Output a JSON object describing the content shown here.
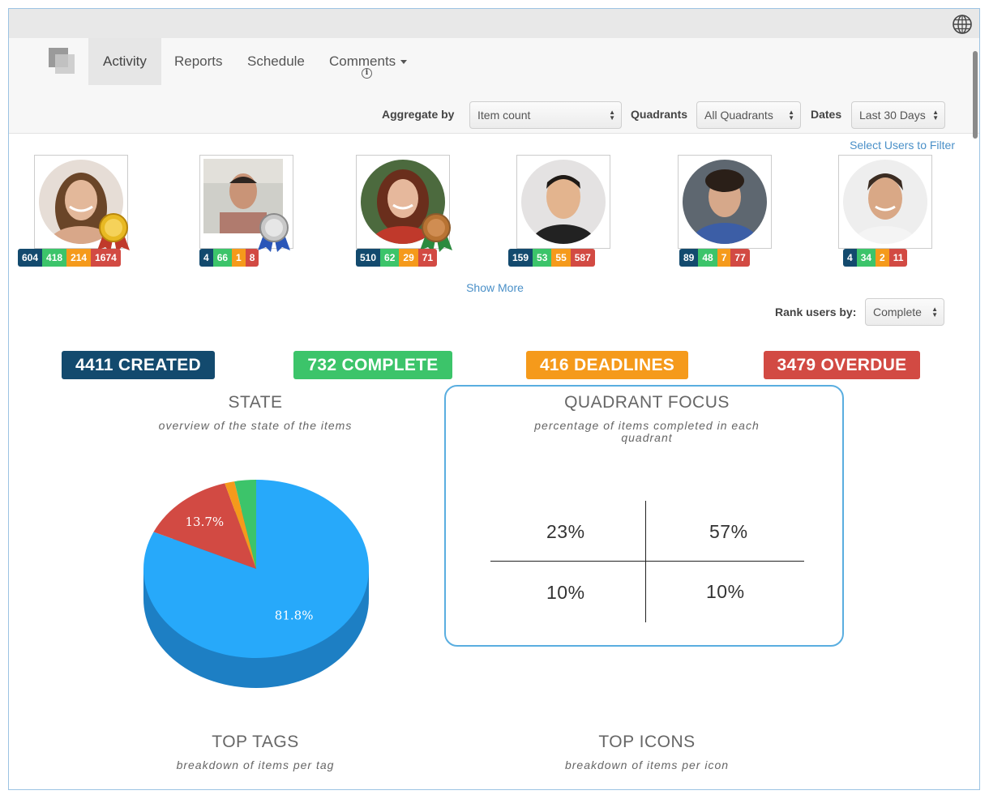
{
  "nav": {
    "tabs": [
      "Activity",
      "Reports",
      "Schedule",
      "Comments"
    ],
    "active_tab": "Activity"
  },
  "filters": {
    "aggregate_label": "Aggregate by",
    "aggregate_value": "Item count",
    "quadrants_label": "Quadrants",
    "quadrants_value": "All Quadrants",
    "dates_label": "Dates",
    "dates_value": "Last 30 Days"
  },
  "select_users_link": "Select Users to Filter",
  "users": [
    {
      "name": "",
      "medal": "gold",
      "stats": [
        "604",
        "418",
        "214",
        "1674"
      ]
    },
    {
      "name": "",
      "medal": "silver",
      "stats": [
        "4",
        "66",
        "1",
        "8"
      ]
    },
    {
      "name": "",
      "medal": "bronze",
      "stats": [
        "510",
        "62",
        "29",
        "71"
      ]
    },
    {
      "name": "",
      "medal": "",
      "stats": [
        "159",
        "53",
        "55",
        "587"
      ]
    },
    {
      "name": "",
      "medal": "",
      "stats": [
        "89",
        "48",
        "7",
        "77"
      ]
    },
    {
      "name": "",
      "medal": "",
      "stats": [
        "4",
        "34",
        "2",
        "11"
      ]
    }
  ],
  "show_more": "Show More",
  "rank": {
    "label": "Rank users by:",
    "value": "Complete"
  },
  "summary": {
    "created": "4411 CREATED",
    "complete": "732 COMPLETE",
    "deadlines": "416 DEADLINES",
    "overdue": "3479 OVERDUE"
  },
  "colors": {
    "created": "#134a6e",
    "complete": "#3cc46a",
    "deadlines": "#f59a1b",
    "overdue": "#d24a43",
    "pie_main": "#27a9fa",
    "focus_border": "#5aaee0"
  },
  "state": {
    "title": "STATE",
    "subtitle": "overview of the state of the items"
  },
  "quadrant_focus": {
    "title": "QUADRANT FOCUS",
    "subtitle_line1": "percentage of items completed in each",
    "subtitle_line2": "quadrant",
    "values": [
      "23%",
      "57%",
      "10%",
      "10%"
    ]
  },
  "top_tags": {
    "title": "TOP TAGS",
    "subtitle": "breakdown of items per tag"
  },
  "top_icons": {
    "title": "TOP ICONS",
    "subtitle": "breakdown of items per icon"
  },
  "chart_data": {
    "type": "pie",
    "title": "STATE",
    "slices": [
      {
        "value": 81.8,
        "label": "81.8%",
        "color": "#27a9fa"
      },
      {
        "value": 13.7,
        "label": "13.7%",
        "color": "#d24a43"
      },
      {
        "value": 1.4,
        "label": "",
        "color": "#f59a1b"
      },
      {
        "value": 3.1,
        "label": "",
        "color": "#3cc46a"
      }
    ]
  }
}
